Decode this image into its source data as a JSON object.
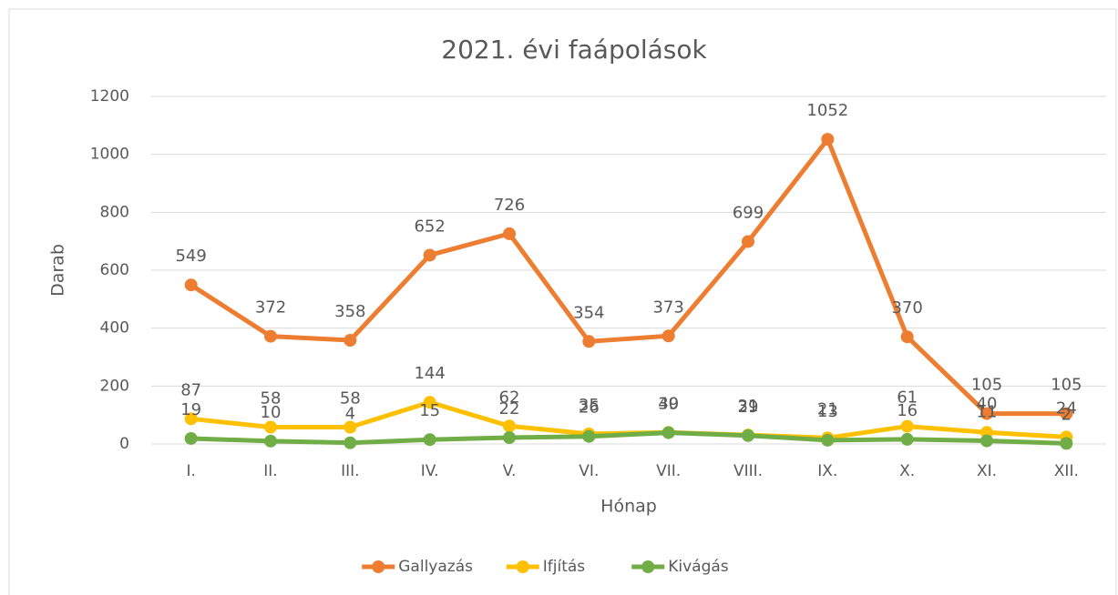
{
  "chart_data": {
    "type": "line",
    "title": "2021. évi faápolások",
    "x_label": "Hónap",
    "y_label": "Darab",
    "categories": [
      "I.",
      "II.",
      "III.",
      "IV.",
      "V.",
      "VI.",
      "VII.",
      "VIII.",
      "IX.",
      "X.",
      "XI.",
      "XII."
    ],
    "series": [
      {
        "name": "Gallyazás",
        "color": "#ED7D31",
        "values": [
          549,
          372,
          358,
          652,
          726,
          354,
          373,
          699,
          1052,
          370,
          105,
          105
        ]
      },
      {
        "name": "Ifjítás",
        "color": "#FFC000",
        "values": [
          87,
          58,
          58,
          144,
          62,
          35,
          40,
          31,
          21,
          61,
          40,
          24
        ]
      },
      {
        "name": "Kivágás",
        "color": "#70AD47",
        "values": [
          19,
          10,
          4,
          15,
          22,
          26,
          39,
          29,
          13,
          16,
          11,
          2
        ]
      }
    ],
    "ylim": [
      0,
      1200
    ],
    "yticks": [
      0,
      200,
      400,
      600,
      800,
      1000,
      1200
    ],
    "grid": true,
    "legend": "bottom"
  }
}
